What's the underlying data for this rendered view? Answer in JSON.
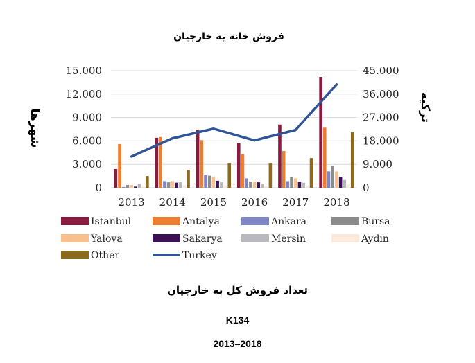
{
  "chart_data": {
    "type": "bar",
    "title": "فروش خانه به خارجیان",
    "ylabel_left": "شهرها",
    "ylabel_right": "ترکیه",
    "categories": [
      "2013",
      "2014",
      "2015",
      "2016",
      "2017",
      "2018"
    ],
    "ylim_left": [
      0,
      15000
    ],
    "ylim_right": [
      0,
      45000
    ],
    "yticks_left": [
      "0",
      "3.000",
      "6.000",
      "9.000",
      "12.000",
      "15.000"
    ],
    "yticks_right": [
      "0",
      "9.000",
      "18.000",
      "27.000",
      "36.000",
      "45.000"
    ],
    "grid": true,
    "legend_position": "bottom",
    "series": [
      {
        "name": "Istanbul",
        "color": "#8B1A3F",
        "values": [
          2400,
          6400,
          7400,
          5700,
          8100,
          14200
        ]
      },
      {
        "name": "Antalya",
        "color": "#ED7D31",
        "values": [
          5600,
          6500,
          6100,
          4300,
          4700,
          7700
        ]
      },
      {
        "name": "Ankara",
        "color": "#7F87C8",
        "values": [
          100,
          850,
          1600,
          1200,
          850,
          2100
        ]
      },
      {
        "name": "Bursa",
        "color": "#8C8C8C",
        "values": [
          350,
          700,
          1550,
          800,
          1350,
          2800
        ]
      },
      {
        "name": "Yalova",
        "color": "#F8C08E",
        "values": [
          350,
          850,
          1400,
          800,
          1200,
          2100
        ]
      },
      {
        "name": "Sakarya",
        "color": "#3D1254",
        "values": [
          150,
          650,
          900,
          700,
          750,
          1400
        ]
      },
      {
        "name": "Mersin",
        "color": "#B9B9BD",
        "values": [
          500,
          700,
          700,
          500,
          650,
          1000
        ]
      },
      {
        "name": "Aydın",
        "color": "#FBEADB",
        "values": [
          150,
          300,
          300,
          250,
          300,
          400
        ]
      },
      {
        "name": "Other",
        "color": "#8C6B1E",
        "values": [
          1500,
          2300,
          3100,
          3100,
          3800,
          7100
        ]
      }
    ],
    "line_series": {
      "name": "Turkey",
      "color": "#2F5597",
      "axis": "right",
      "values": [
        12000,
        19000,
        22700,
        18200,
        22200,
        39700
      ]
    }
  },
  "captions": {
    "main": "تعداد فروش کل به خارجیان",
    "code": "K134",
    "years": "2013–2018"
  }
}
